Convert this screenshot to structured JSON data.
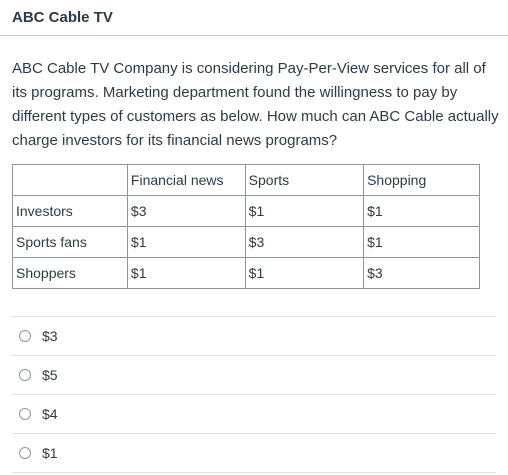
{
  "header": {
    "title": "ABC Cable TV"
  },
  "question": {
    "text": "ABC Cable TV Company is considering Pay-Per-View services for all of its programs. Marketing department found the willingness to pay by different types of customers as below. How much can ABC Cable actually charge investors for its financial news programs?"
  },
  "table": {
    "headers": [
      "",
      "Financial news",
      "Sports",
      "Shopping"
    ],
    "rows": [
      [
        "Investors",
        "$3",
        "$1",
        "$1"
      ],
      [
        "Sports fans",
        "$1",
        "$3",
        "$1"
      ],
      [
        "Shoppers",
        "$1",
        "$1",
        "$3"
      ]
    ]
  },
  "options": [
    {
      "label": "$3"
    },
    {
      "label": "$5"
    },
    {
      "label": "$4"
    },
    {
      "label": "$1"
    }
  ]
}
